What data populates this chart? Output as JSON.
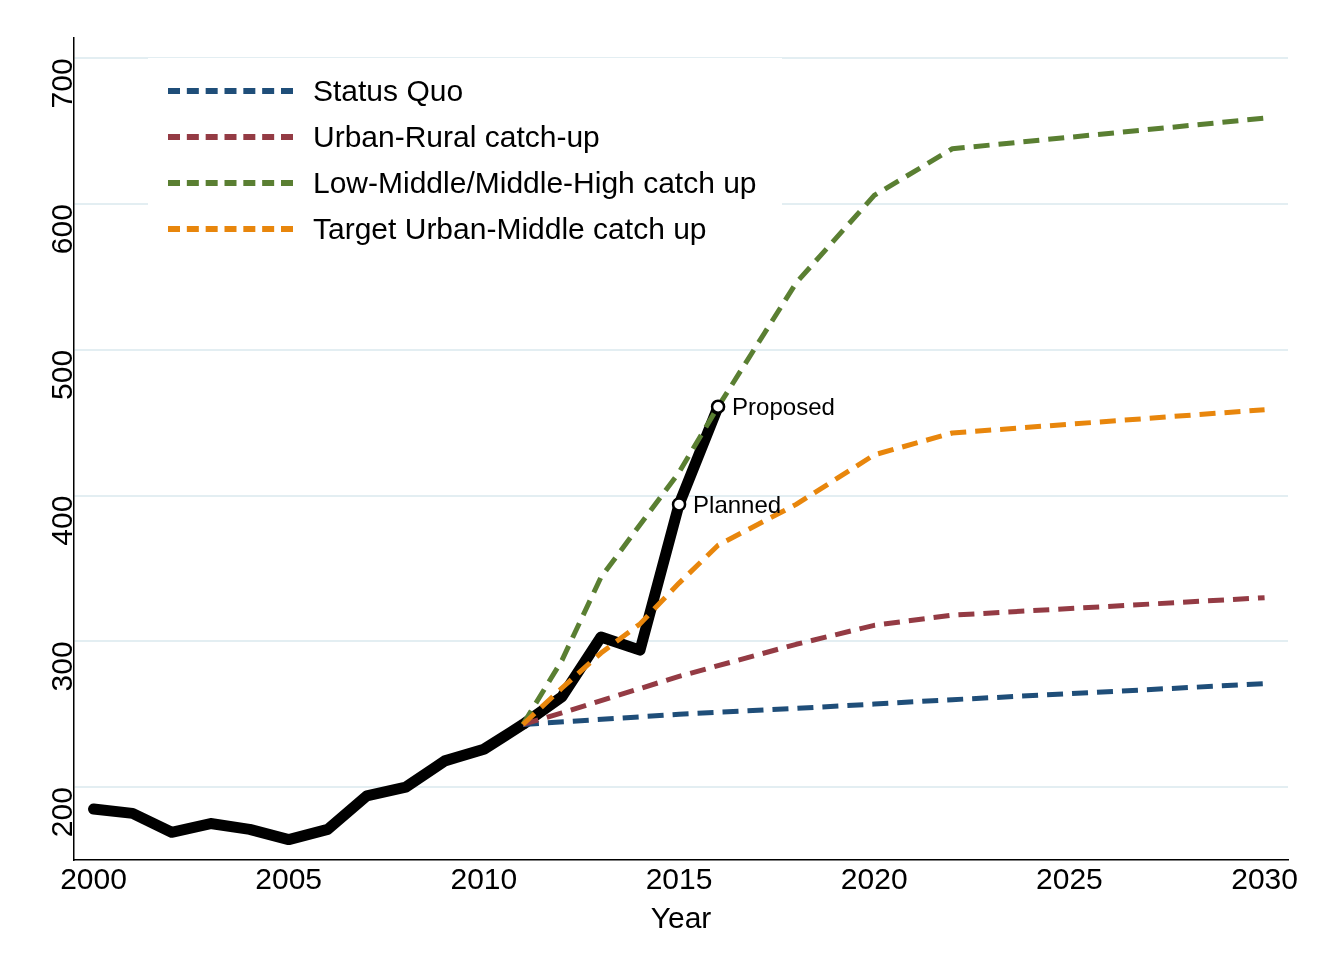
{
  "chart_data": {
    "type": "line",
    "xlabel": "Year",
    "xlim": [
      1999.5,
      2030.6
    ],
    "xticks": [
      2000,
      2005,
      2010,
      2015,
      2020,
      2025,
      2030
    ],
    "ylim": [
      150,
      714
    ],
    "yticks": [
      200,
      300,
      400,
      500,
      600,
      700
    ],
    "grid": "y",
    "legend": "top left",
    "line_style": "dashed",
    "series": [
      {
        "name": "Status Quo",
        "color": "#1f4e79",
        "x": [
          2011,
          2015,
          2018,
          2020,
          2022,
          2030
        ],
        "values": [
          243,
          250,
          254,
          257,
          260,
          271
        ]
      },
      {
        "name": "Urban-Rural catch-up",
        "color": "#943b44",
        "x": [
          2011,
          2012,
          2015,
          2018,
          2020,
          2022,
          2030
        ],
        "values": [
          243,
          251,
          276,
          298,
          311,
          318,
          330
        ]
      },
      {
        "name": "Low-Middle/Middle-High catch up",
        "color": "#5a7f32",
        "x": [
          2011,
          2012,
          2013,
          2014,
          2015,
          2016,
          2018,
          2020,
          2022,
          2030
        ],
        "values": [
          243,
          287,
          344,
          380,
          416,
          461,
          546,
          606,
          638,
          659
        ]
      },
      {
        "name": "Target Urban-Middle catch up",
        "color": "#e8860c",
        "x": [
          2011,
          2012,
          2013,
          2014,
          2015,
          2016,
          2018,
          2020,
          2022,
          2030
        ],
        "values": [
          243,
          268,
          292,
          312,
          340,
          366,
          394,
          428,
          443,
          459
        ]
      },
      {
        "color": "#000000",
        "line_style": "solid",
        "x": [
          2000,
          2001,
          2002,
          2003,
          2004,
          2005,
          2006,
          2007,
          2008,
          2009,
          2010,
          2011,
          2012,
          2013,
          2014,
          2015,
          2016
        ],
        "values": [
          185,
          182,
          169,
          175,
          171,
          164,
          171,
          194,
          200,
          218,
          226,
          243,
          262,
          303,
          294,
          394,
          461
        ]
      }
    ],
    "annotations": [
      {
        "text": "Planned",
        "x": 2015,
        "y": 394
      },
      {
        "text": "Proposed",
        "x": 2016,
        "y": 461
      }
    ]
  }
}
